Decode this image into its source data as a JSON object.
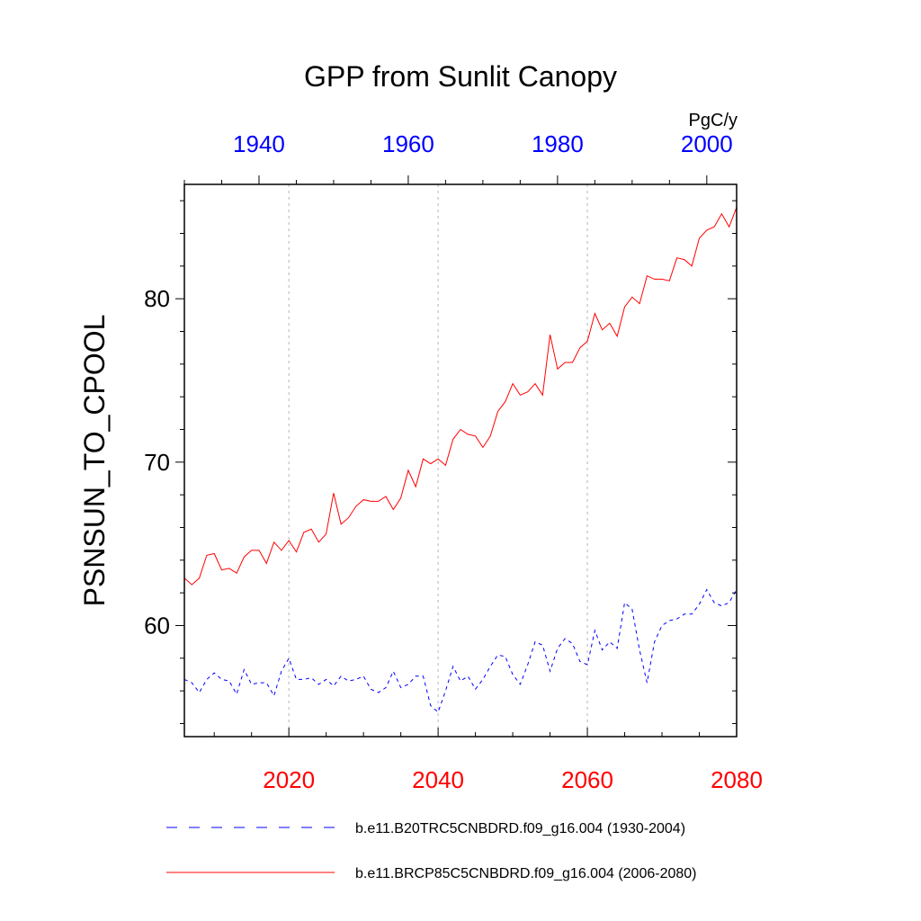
{
  "chart_data": {
    "type": "line",
    "title": "GPP from Sunlit Canopy",
    "ylabel": "PSNSUN_TO_CPOOL",
    "units": "PgC/y",
    "xlabel": "",
    "ylim": [
      53.2,
      87
    ],
    "yticks": [
      60,
      70,
      80
    ],
    "grid": "vertical dashed at bottom-axis major ticks",
    "legend_placement": "bottom",
    "bottom_axis": {
      "range": [
        2006,
        2080
      ],
      "ticks": [
        2020,
        2040,
        2060,
        2080
      ],
      "color": "#ff0000"
    },
    "top_axis": {
      "range": [
        1930,
        2004
      ],
      "ticks": [
        1940,
        1960,
        1980,
        2000
      ],
      "color": "#0000ff"
    },
    "series": [
      {
        "name": "b.e11.B20TRC5CNBDRD.f09_g16.004 (1930-2004)",
        "axis": "top",
        "color": "#0000ff",
        "style": "dashed",
        "x": [
          1930,
          1931,
          1932,
          1933,
          1934,
          1935,
          1936,
          1937,
          1938,
          1939,
          1940,
          1941,
          1942,
          1943,
          1944,
          1945,
          1946,
          1947,
          1948,
          1949,
          1950,
          1951,
          1952,
          1953,
          1954,
          1955,
          1956,
          1957,
          1958,
          1959,
          1960,
          1961,
          1962,
          1963,
          1964,
          1965,
          1966,
          1967,
          1968,
          1969,
          1970,
          1971,
          1972,
          1973,
          1974,
          1975,
          1976,
          1977,
          1978,
          1979,
          1980,
          1981,
          1982,
          1983,
          1984,
          1985,
          1986,
          1987,
          1988,
          1989,
          1990,
          1991,
          1992,
          1993,
          1994,
          1995,
          1996,
          1997,
          1998,
          1999,
          2000,
          2001,
          2002,
          2003,
          2004
        ],
        "values": [
          56.7,
          56.5,
          55.9,
          56.7,
          57.1,
          56.7,
          56.6,
          55.8,
          57.3,
          56.4,
          56.5,
          56.5,
          55.7,
          57.2,
          58.0,
          56.7,
          56.7,
          56.8,
          56.4,
          56.7,
          56.3,
          56.9,
          56.6,
          56.7,
          56.9,
          56.1,
          55.9,
          56.2,
          57.2,
          56.2,
          56.4,
          56.9,
          56.9,
          55.1,
          54.7,
          56.0,
          57.5,
          56.6,
          56.9,
          56.1,
          56.7,
          57.5,
          58.2,
          58.1,
          57.0,
          56.4,
          57.6,
          59.0,
          58.8,
          57.2,
          58.6,
          59.2,
          58.9,
          57.8,
          57.6,
          59.7,
          58.5,
          59.0,
          58.6,
          61.4,
          61.0,
          58.5,
          56.5,
          59.0,
          60.0,
          60.3,
          60.4,
          60.7,
          60.7,
          61.3,
          62.2,
          61.4,
          61.2,
          61.4,
          62.2
        ]
      },
      {
        "name": "b.e11.BRCP85C5CNBDRD.f09_g16.004 (2006-2080)",
        "axis": "bottom",
        "color": "#ff0000",
        "style": "solid",
        "x": [
          2006,
          2007,
          2008,
          2009,
          2010,
          2011,
          2012,
          2013,
          2014,
          2015,
          2016,
          2017,
          2018,
          2019,
          2020,
          2021,
          2022,
          2023,
          2024,
          2025,
          2026,
          2027,
          2028,
          2029,
          2030,
          2031,
          2032,
          2033,
          2034,
          2035,
          2036,
          2037,
          2038,
          2039,
          2040,
          2041,
          2042,
          2043,
          2044,
          2045,
          2046,
          2047,
          2048,
          2049,
          2050,
          2051,
          2052,
          2053,
          2054,
          2055,
          2056,
          2057,
          2058,
          2059,
          2060,
          2061,
          2062,
          2063,
          2064,
          2065,
          2066,
          2067,
          2068,
          2069,
          2070,
          2071,
          2072,
          2073,
          2074,
          2075,
          2076,
          2077,
          2078,
          2079,
          2080
        ],
        "values": [
          62.9,
          62.5,
          62.9,
          64.3,
          64.4,
          63.4,
          63.5,
          63.2,
          64.2,
          64.6,
          64.6,
          63.8,
          65.1,
          64.6,
          65.2,
          64.5,
          65.7,
          65.9,
          65.1,
          65.6,
          68.1,
          66.2,
          66.6,
          67.3,
          67.7,
          67.6,
          67.6,
          67.9,
          67.1,
          67.8,
          69.5,
          68.5,
          70.2,
          69.9,
          70.2,
          69.8,
          71.4,
          72.0,
          71.7,
          71.6,
          70.9,
          71.6,
          73.1,
          73.7,
          74.8,
          74.1,
          74.3,
          74.8,
          74.1,
          77.8,
          75.7,
          76.1,
          76.1,
          77.0,
          77.4,
          79.1,
          78.1,
          78.5,
          77.7,
          79.5,
          80.1,
          79.7,
          81.4,
          81.2,
          81.2,
          81.1,
          82.5,
          82.4,
          82.0,
          83.7,
          84.2,
          84.4,
          85.2,
          84.4,
          85.6
        ]
      }
    ]
  }
}
